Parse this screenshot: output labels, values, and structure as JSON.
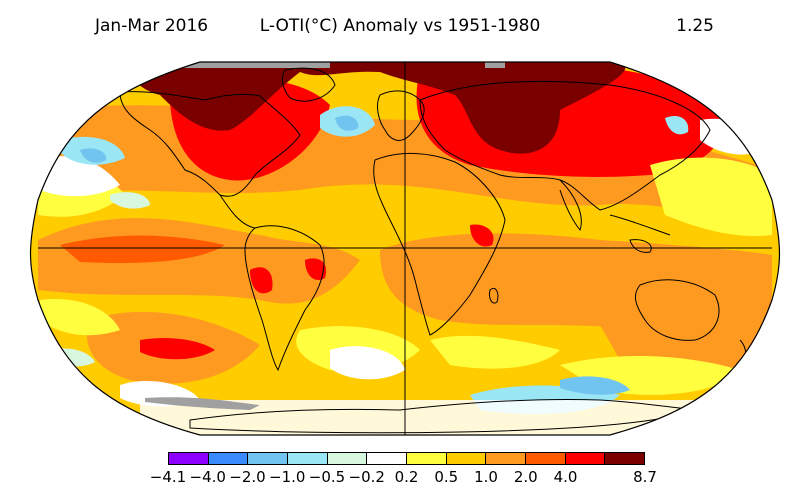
{
  "header": {
    "period": "Jan-Mar 2016",
    "title": "L-OTI(°C) Anomaly vs 1951-1980",
    "global_mean": "1.25"
  },
  "legend": {
    "colors": [
      "#8c00ff",
      "#3b8bff",
      "#72c4f0",
      "#9ae6f5",
      "#d8f7df",
      "#ffffff",
      "#ffff40",
      "#ffcc00",
      "#ff9a20",
      "#ff5a00",
      "#ff0000",
      "#7a0000"
    ],
    "ticks": [
      "−4.1",
      "−4.0",
      "−2.0",
      "−1.0",
      "−0.5",
      "−0.2",
      "0.2",
      "0.5",
      "1.0",
      "2.0",
      "4.0",
      "8.7"
    ]
  },
  "map": {
    "projection": "robinson",
    "ocean_fill": "#ffcc00",
    "no_data_color": "#a0a0a0",
    "grid_lines": [
      "equator",
      "prime-meridian"
    ]
  }
}
